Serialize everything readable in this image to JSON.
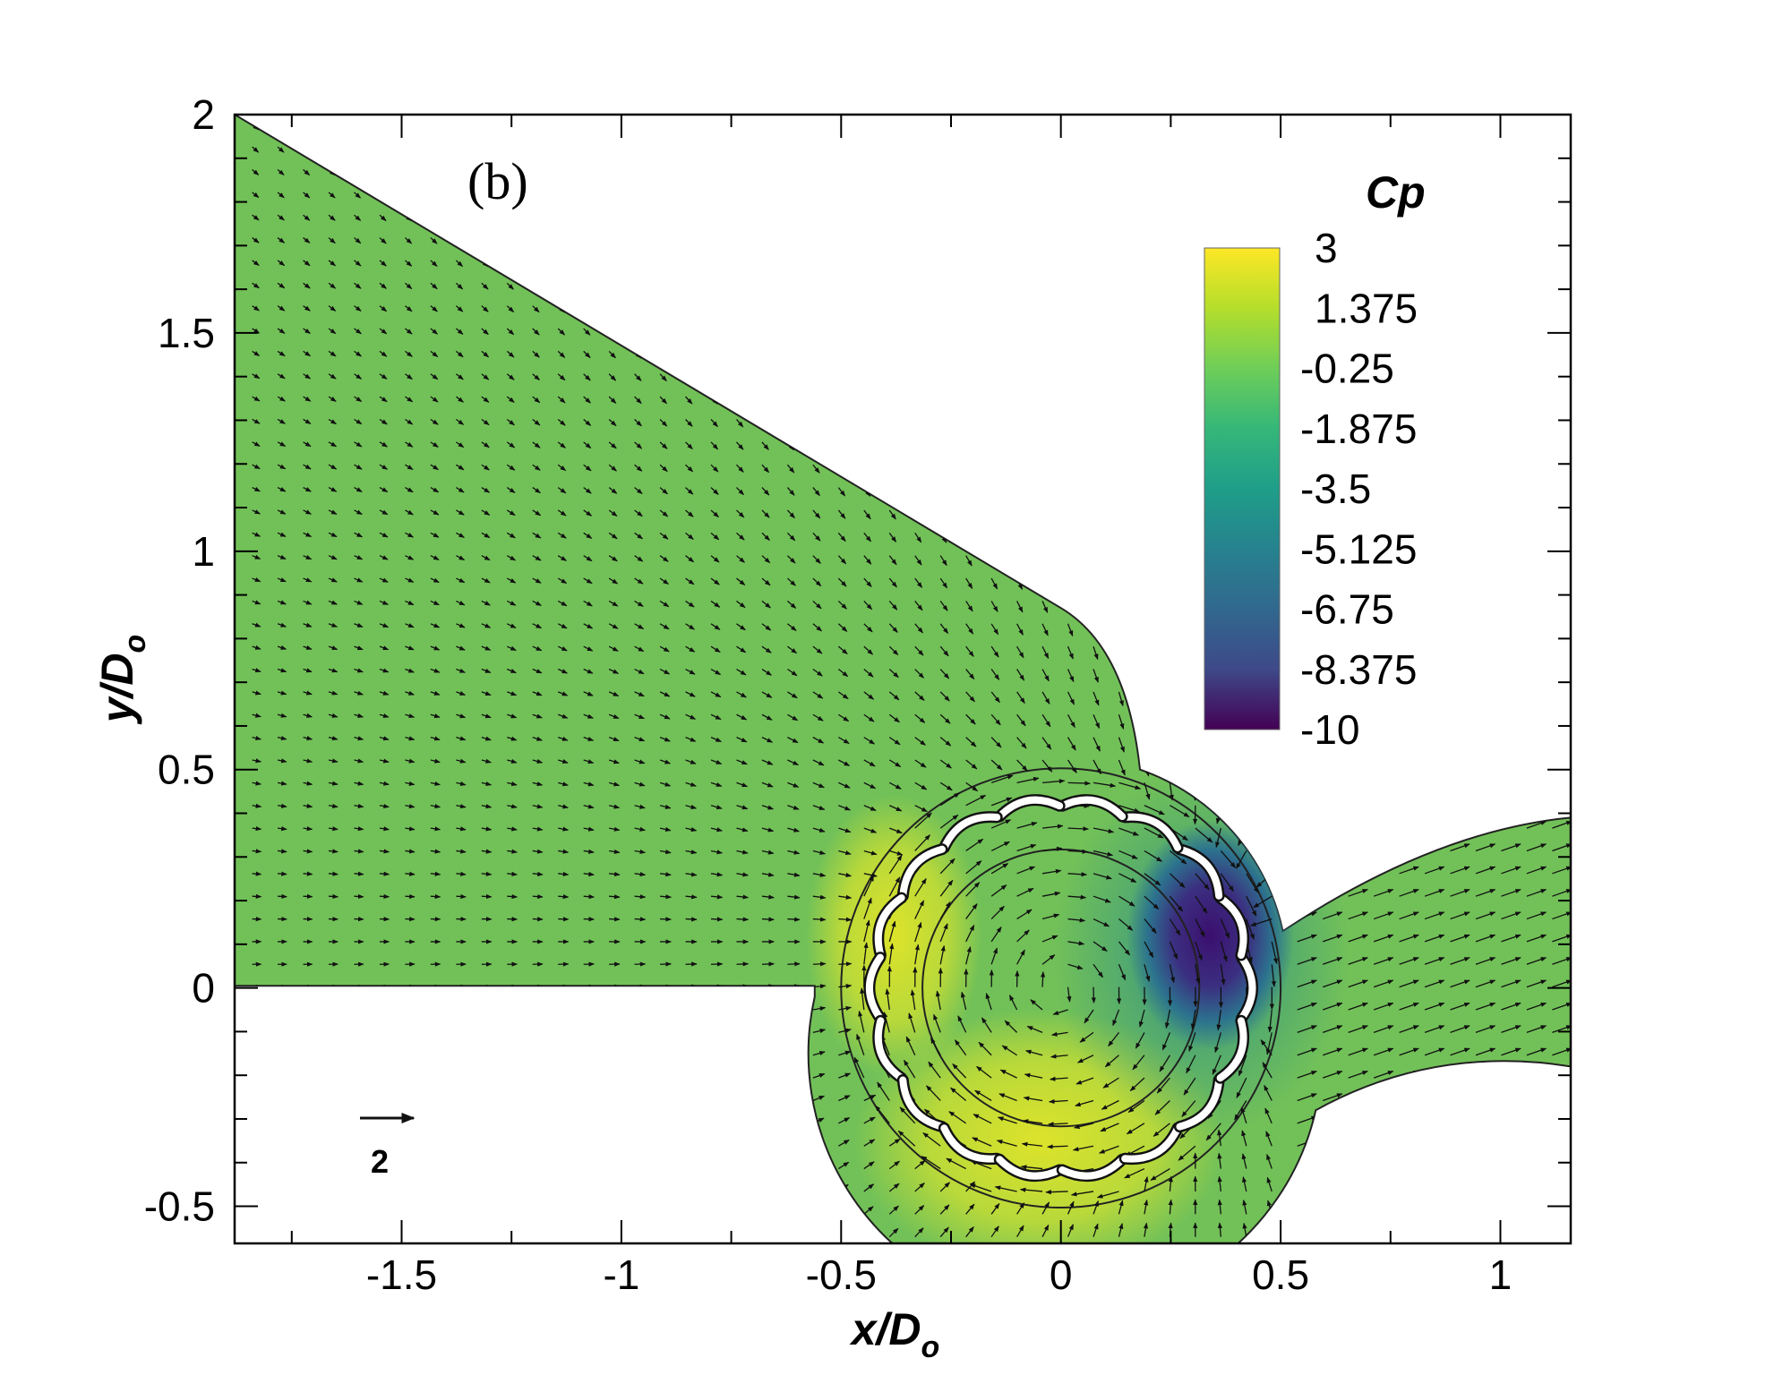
{
  "chart_data": {
    "type": "contour",
    "panel_label": "(b)",
    "xlabel": "x/D",
    "xlabel_sub": "o",
    "ylabel": "y/D",
    "ylabel_sub": "o",
    "xlim": [
      -1.88,
      1.16
    ],
    "ylim": [
      -0.585,
      2.0
    ],
    "xticks": [
      -1.5,
      -1,
      -0.5,
      0,
      0.5,
      1
    ],
    "xtick_labels": [
      "-1.5",
      "-1",
      "-0.5",
      "0",
      "0.5",
      "1"
    ],
    "yticks": [
      -0.5,
      0,
      0.5,
      1,
      1.5,
      2
    ],
    "ytick_labels": [
      "-0.5",
      "0",
      "0.5",
      "1",
      "1.5",
      "2"
    ],
    "colorbar": {
      "title": "Cp",
      "levels": [
        3,
        1.375,
        -0.25,
        -1.875,
        -3.5,
        -5.125,
        -6.75,
        -8.375,
        -10
      ],
      "labels": [
        "3",
        "1.375",
        "-0.25",
        "-1.875",
        "-3.5",
        "-5.125",
        "-6.75",
        "-8.375",
        "-10"
      ],
      "colormap": "viridis",
      "colors": [
        "#fde725",
        "#b5de2b",
        "#6ece58",
        "#35b779",
        "#1f9e89",
        "#26828e",
        "#31688e",
        "#3e4989",
        "#440154"
      ]
    },
    "reference_vector": {
      "label": "2",
      "magnitude": 2
    },
    "geometry": {
      "rotor_center": [
        0.0,
        0.0
      ],
      "rotor_outer_radius": 0.5,
      "rotor_inner_radius": 0.315,
      "blade_count": 18
    },
    "colors": {
      "background_field": "#72c158",
      "low_pressure_core": "#3b0f6f",
      "high_pressure": "#d8e22d",
      "blade": "#ffffff",
      "vector": "#111111"
    }
  }
}
